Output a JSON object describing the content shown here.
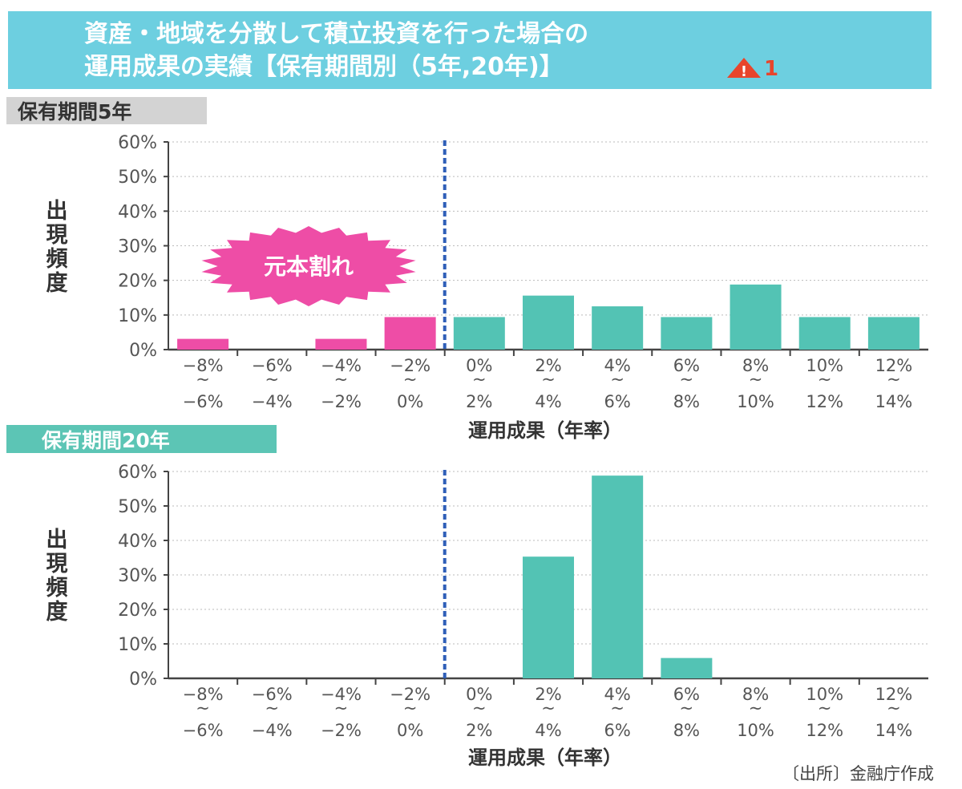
{
  "title": {
    "line1": "資産・地域を分散して積立投資を行った場合の",
    "line2": "運用成果の実績【保有期間別（5年,20年)】",
    "note_icon": "warning-triangle-icon",
    "note_number": "1"
  },
  "colors": {
    "title_bg": "#6dcfe0",
    "loss": "#ee4da6",
    "gain": "#53c3b4",
    "tag5_bg": "#d3d3d3",
    "tag20_bg": "#5cc5b5",
    "divider": "#2f5fb8",
    "warning": "#e8452c"
  },
  "source": "〔出所〕金融庁作成",
  "chart_data": [
    {
      "type": "bar",
      "title": "保有期間5年",
      "xlabel": "運用成果（年率）",
      "ylabel": "出現頻度",
      "ylim": [
        0,
        60
      ],
      "yticks": [
        "0%",
        "10%",
        "20%",
        "30%",
        "40%",
        "50%",
        "60%"
      ],
      "categories": [
        [
          "−8%",
          "−6%"
        ],
        [
          "−6%",
          "−4%"
        ],
        [
          "−4%",
          "−2%"
        ],
        [
          "−2%",
          "0%"
        ],
        [
          "0%",
          "2%"
        ],
        [
          "2%",
          "4%"
        ],
        [
          "4%",
          "6%"
        ],
        [
          "6%",
          "8%"
        ],
        [
          "8%",
          "10%"
        ],
        [
          "10%",
          "12%"
        ],
        [
          "12%",
          "14%"
        ]
      ],
      "values": [
        3.1,
        0,
        3.1,
        9.4,
        9.4,
        15.6,
        12.5,
        9.4,
        18.8,
        9.4,
        9.4
      ],
      "annotation": "元本割れ",
      "grid": true
    },
    {
      "type": "bar",
      "title": "保有期間20年",
      "xlabel": "運用成果（年率）",
      "ylabel": "出現頻度",
      "ylim": [
        0,
        60
      ],
      "yticks": [
        "0%",
        "10%",
        "20%",
        "30%",
        "40%",
        "50%",
        "60%"
      ],
      "categories": [
        [
          "−8%",
          "−6%"
        ],
        [
          "−6%",
          "−4%"
        ],
        [
          "−4%",
          "−2%"
        ],
        [
          "−2%",
          "0%"
        ],
        [
          "0%",
          "2%"
        ],
        [
          "2%",
          "4%"
        ],
        [
          "4%",
          "6%"
        ],
        [
          "6%",
          "8%"
        ],
        [
          "8%",
          "10%"
        ],
        [
          "10%",
          "12%"
        ],
        [
          "12%",
          "14%"
        ]
      ],
      "values": [
        0,
        0,
        0,
        0,
        0,
        35.3,
        58.8,
        5.9,
        0,
        0,
        0
      ],
      "grid": true
    }
  ]
}
